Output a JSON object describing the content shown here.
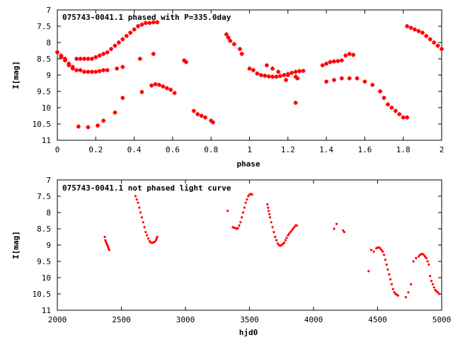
{
  "colors": {
    "points": "#ff0000",
    "axes": "#000000",
    "background": "#ffffff"
  },
  "chart_data": [
    {
      "type": "scatter",
      "title": "075743-0041.1 phased with P=335.0day",
      "xlabel": "phase",
      "ylabel": "I[mag]",
      "xlim": [
        0,
        2
      ],
      "ylim": [
        7,
        11
      ],
      "y_inverted": true,
      "xticks": [
        0,
        0.2,
        0.4,
        0.6,
        0.8,
        1,
        1.2,
        1.4,
        1.6,
        1.8,
        2
      ],
      "xtick_labels": [
        "0",
        "0.2",
        "0.4",
        "0.6",
        "0.8",
        "1",
        "1.2",
        "1.4",
        "1.6",
        "1.8",
        "2"
      ],
      "yticks": [
        7,
        7.5,
        8,
        8.5,
        9,
        9.5,
        10,
        10.5,
        11
      ],
      "ytick_labels": [
        "7",
        "7.5",
        "8",
        "8.5",
        "9",
        "9.5",
        "10",
        "10.5",
        "11"
      ],
      "grid": false,
      "marker": "plus",
      "series": [
        {
          "x": [
            0.0,
            0.02,
            0.04,
            0.06,
            0.08,
            0.1,
            0.12,
            0.14,
            0.16,
            0.18,
            0.2,
            0.22,
            0.24,
            0.26,
            0.28,
            0.3,
            0.32,
            0.34,
            0.36,
            0.38,
            0.4,
            0.42,
            0.44,
            0.46,
            0.48,
            0.5,
            0.52,
            0.02,
            0.04,
            0.06,
            0.08,
            0.1,
            0.12,
            0.14,
            0.16,
            0.18,
            0.2,
            0.22,
            0.24,
            0.26,
            0.11,
            0.16,
            0.21,
            0.24,
            0.3,
            0.34,
            0.44,
            0.49,
            0.51,
            0.53,
            0.55,
            0.57,
            0.59,
            0.61,
            0.31,
            0.34,
            0.43,
            0.5,
            0.66,
            0.67,
            0.71,
            0.73,
            0.75,
            0.77,
            0.8,
            0.81,
            0.88,
            0.89,
            0.9,
            0.92,
            0.95,
            0.96,
            1.0,
            1.02,
            1.04,
            1.06,
            1.08,
            1.1,
            1.12,
            1.14,
            1.16,
            1.18,
            1.2,
            1.22,
            1.24,
            1.26,
            1.28,
            1.09,
            1.12,
            1.15,
            1.2,
            1.24,
            1.25,
            1.19,
            1.24,
            1.38,
            1.4,
            1.42,
            1.44,
            1.46,
            1.48,
            1.5,
            1.52,
            1.54,
            1.4,
            1.44,
            1.48,
            1.52,
            1.56,
            1.6,
            1.64,
            1.68,
            1.7,
            1.72,
            1.74,
            1.76,
            1.78,
            1.8,
            1.82,
            1.82,
            1.84,
            1.86,
            1.88,
            1.9,
            1.92,
            1.94,
            1.96,
            1.98,
            2.0
          ],
          "y": [
            8.3,
            8.4,
            8.55,
            8.65,
            8.75,
            8.5,
            8.5,
            8.5,
            8.5,
            8.5,
            8.45,
            8.4,
            8.35,
            8.3,
            8.2,
            8.1,
            8.0,
            7.9,
            7.8,
            7.7,
            7.6,
            7.5,
            7.45,
            7.4,
            7.4,
            7.38,
            7.38,
            8.45,
            8.5,
            8.7,
            8.8,
            8.85,
            8.85,
            8.9,
            8.9,
            8.9,
            8.9,
            8.88,
            8.85,
            8.85,
            10.58,
            10.6,
            10.55,
            10.4,
            10.15,
            9.7,
            9.52,
            9.32,
            9.28,
            9.3,
            9.35,
            9.4,
            9.45,
            9.55,
            8.8,
            8.75,
            8.5,
            8.35,
            8.55,
            8.6,
            10.1,
            10.2,
            10.25,
            10.3,
            10.4,
            10.45,
            7.75,
            7.85,
            7.95,
            8.05,
            8.2,
            8.35,
            8.8,
            8.85,
            8.95,
            9.0,
            9.02,
            9.04,
            9.05,
            9.05,
            9.03,
            9.0,
            8.97,
            8.93,
            8.9,
            8.88,
            8.87,
            8.7,
            8.8,
            8.9,
            9.0,
            9.05,
            9.1,
            9.15,
            9.85,
            8.7,
            8.65,
            8.6,
            8.58,
            8.57,
            8.55,
            8.4,
            8.35,
            8.38,
            9.2,
            9.15,
            9.1,
            9.1,
            9.1,
            9.2,
            9.3,
            9.5,
            9.7,
            9.9,
            10.0,
            10.1,
            10.2,
            10.3,
            10.3,
            7.5,
            7.55,
            7.6,
            7.65,
            7.7,
            7.8,
            7.9,
            8.0,
            8.1,
            8.2
          ]
        }
      ]
    },
    {
      "type": "scatter",
      "title": "075743-0041.1 not phased light curve",
      "xlabel": "hjd0",
      "ylabel": "I[mag]",
      "xlim": [
        2000,
        5000
      ],
      "ylim": [
        7,
        11
      ],
      "y_inverted": true,
      "xticks": [
        2000,
        2500,
        3000,
        3500,
        4000,
        4500,
        5000
      ],
      "xtick_labels": [
        "2000",
        "2500",
        "3000",
        "3500",
        "4000",
        "4500",
        "5000"
      ],
      "yticks": [
        7,
        7.5,
        8,
        8.5,
        9,
        9.5,
        10,
        10.5,
        11
      ],
      "ytick_labels": [
        "7",
        "7.5",
        "8",
        "8.5",
        "9",
        "9.5",
        "10",
        "10.5",
        "11"
      ],
      "grid": false,
      "marker": "dot",
      "series": [
        {
          "x": [
            2370,
            2375,
            2380,
            2385,
            2390,
            2395,
            2400,
            2405,
            2610,
            2620,
            2630,
            2640,
            2650,
            2660,
            2670,
            2680,
            2690,
            2700,
            2710,
            2720,
            2730,
            2740,
            2750,
            2760,
            2770,
            2775,
            2780,
            3330,
            3370,
            3380,
            3390,
            3400,
            3410,
            3420,
            3430,
            3440,
            3450,
            3460,
            3470,
            3480,
            3490,
            3500,
            3510,
            3520,
            3640,
            3645,
            3650,
            3655,
            3660,
            3670,
            3680,
            3690,
            3700,
            3710,
            3720,
            3730,
            3740,
            3750,
            3760,
            3770,
            3780,
            3790,
            3800,
            3810,
            3820,
            3830,
            3840,
            3850,
            3860,
            3870,
            4160,
            4180,
            4230,
            4240,
            4430,
            4450,
            4470,
            4490,
            4500,
            4510,
            4520,
            4530,
            4540,
            4550,
            4560,
            4570,
            4580,
            4590,
            4600,
            4610,
            4620,
            4630,
            4640,
            4650,
            4660,
            4720,
            4740,
            4760,
            4780,
            4800,
            4820,
            4830,
            4840,
            4850,
            4860,
            4870,
            4880,
            4890,
            4900,
            4910,
            4920,
            4930,
            4940,
            4950,
            4960,
            4970,
            4980
          ],
          "y": [
            8.75,
            8.85,
            8.9,
            8.95,
            9.0,
            9.05,
            9.1,
            9.15,
            7.5,
            7.6,
            7.7,
            7.85,
            8.0,
            8.15,
            8.3,
            8.45,
            8.6,
            8.7,
            8.8,
            8.88,
            8.92,
            8.93,
            8.92,
            8.9,
            8.85,
            8.8,
            8.75,
            7.95,
            8.45,
            8.47,
            8.48,
            8.5,
            8.48,
            8.4,
            8.3,
            8.15,
            8.0,
            7.85,
            7.7,
            7.6,
            7.5,
            7.45,
            7.43,
            7.45,
            7.75,
            7.85,
            7.95,
            8.05,
            8.15,
            8.3,
            8.45,
            8.6,
            8.75,
            8.85,
            8.95,
            9.0,
            9.02,
            9.0,
            8.97,
            8.93,
            8.85,
            8.78,
            8.7,
            8.65,
            8.6,
            8.55,
            8.5,
            8.45,
            8.4,
            8.4,
            8.5,
            8.35,
            8.55,
            8.6,
            9.8,
            9.15,
            9.2,
            9.1,
            9.08,
            9.07,
            9.1,
            9.15,
            9.2,
            9.3,
            9.45,
            9.6,
            9.75,
            9.9,
            10.05,
            10.2,
            10.35,
            10.45,
            10.5,
            10.52,
            10.55,
            10.6,
            10.45,
            10.2,
            9.5,
            9.4,
            9.35,
            9.3,
            9.28,
            9.27,
            9.3,
            9.35,
            9.4,
            9.5,
            9.6,
            9.95,
            10.1,
            10.2,
            10.3,
            10.38,
            10.42,
            10.45,
            10.5
          ]
        }
      ]
    }
  ]
}
